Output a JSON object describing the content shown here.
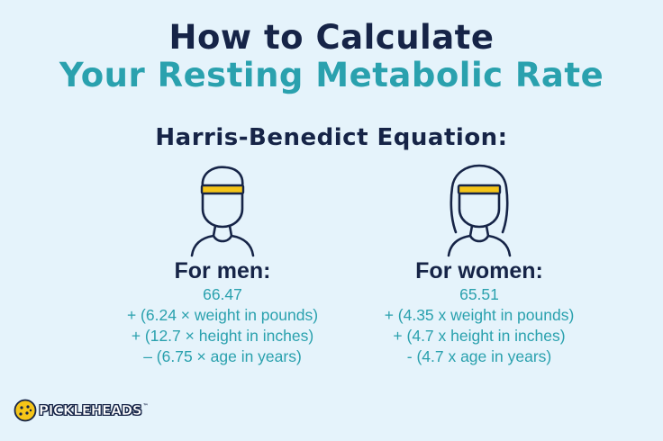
{
  "title": {
    "line1": "How to Calculate",
    "line2": "Your Resting Metabolic Rate"
  },
  "subtitle": "Harris-Benedict Equation:",
  "men": {
    "heading": "For men:",
    "lines": [
      "66.47",
      "+ (6.24 × weight in pounds)",
      "+ (12.7 × height in inches)",
      "– (6.75 × age in years)"
    ]
  },
  "women": {
    "heading": "For women:",
    "lines": [
      "65.51",
      "+ (4.35 x weight in pounds)",
      "+ (4.7 x height in inches)",
      "- (4.7 x age in years)"
    ]
  },
  "logo": {
    "text": "PICKLEHEADS",
    "trademark": "™"
  },
  "colors": {
    "background": "#e5f3fb",
    "navy": "#162447",
    "teal": "#2aa1ae",
    "headband": "#f5c518"
  }
}
